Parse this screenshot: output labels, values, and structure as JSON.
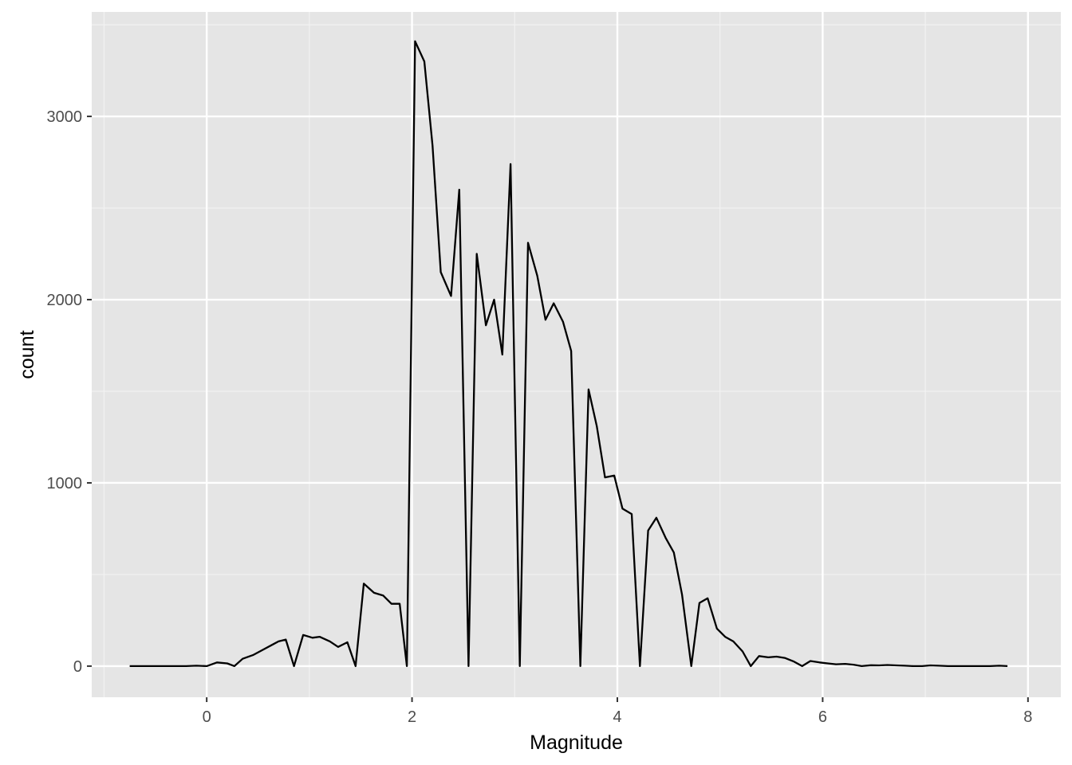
{
  "chart_data": {
    "type": "line",
    "title": "",
    "xlabel": "Magnitude",
    "ylabel": "count",
    "xlim": [
      -1.12,
      8.32
    ],
    "ylim": [
      -170,
      3570
    ],
    "x_ticks": [
      0,
      2,
      4,
      6,
      8
    ],
    "y_ticks": [
      0,
      1000,
      2000,
      3000
    ],
    "x_tick_labels": [
      "0",
      "2",
      "4",
      "6",
      "8"
    ],
    "y_tick_labels": [
      "0",
      "1000",
      "2000",
      "3000"
    ],
    "x_minor_ticks": [
      -1,
      1,
      3,
      5,
      7
    ],
    "y_minor_ticks": [
      500,
      1500,
      2500,
      3500
    ],
    "grid": true,
    "legend": "none",
    "colors": {
      "panel_background": "#e5e5e5",
      "grid_major": "#ffffff",
      "line": "#000000"
    },
    "series": [
      {
        "x": [
          -0.75,
          -0.62,
          -0.5,
          -0.4,
          -0.3,
          -0.2,
          -0.1,
          0.0,
          0.1,
          0.2,
          0.27,
          0.35,
          0.45,
          0.55,
          0.65,
          0.7,
          0.77,
          0.85,
          0.94,
          1.03,
          1.1,
          1.2,
          1.28,
          1.37,
          1.45,
          1.53,
          1.63,
          1.72,
          1.8,
          1.88,
          1.95,
          2.03,
          2.12,
          2.2,
          2.28,
          2.38,
          2.46,
          2.55,
          2.63,
          2.72,
          2.8,
          2.88,
          2.96,
          3.05,
          3.13,
          3.22,
          3.3,
          3.38,
          3.47,
          3.55,
          3.64,
          3.72,
          3.8,
          3.88,
          3.97,
          4.05,
          4.14,
          4.22,
          4.3,
          4.38,
          4.47,
          4.55,
          4.63,
          4.72,
          4.8,
          4.88,
          4.97,
          5.05,
          5.13,
          5.22,
          5.3,
          5.38,
          5.47,
          5.55,
          5.63,
          5.72,
          5.8,
          5.88,
          5.97,
          6.05,
          6.13,
          6.22,
          6.3,
          6.38,
          6.47,
          6.55,
          6.63,
          6.72,
          6.8,
          6.88,
          6.97,
          7.05,
          7.13,
          7.22,
          7.3,
          7.38,
          7.47,
          7.55,
          7.63,
          7.72,
          7.8
        ],
        "y": [
          0,
          0,
          0,
          0,
          0,
          0,
          2,
          0,
          20,
          15,
          0,
          40,
          60,
          90,
          120,
          135,
          145,
          0,
          170,
          155,
          160,
          135,
          105,
          130,
          0,
          450,
          400,
          385,
          340,
          340,
          0,
          3410,
          3300,
          2840,
          2150,
          2020,
          2600,
          0,
          2250,
          1860,
          2000,
          1700,
          2740,
          0,
          2310,
          2130,
          1890,
          1980,
          1880,
          1720,
          0,
          1510,
          1310,
          1030,
          1040,
          860,
          830,
          0,
          740,
          810,
          700,
          620,
          390,
          0,
          345,
          370,
          205,
          160,
          135,
          80,
          0,
          55,
          48,
          52,
          45,
          25,
          0,
          28,
          20,
          15,
          10,
          12,
          8,
          0,
          5,
          4,
          6,
          4,
          2,
          0,
          0,
          4,
          2,
          0,
          0,
          0,
          0,
          0,
          0,
          2,
          0
        ]
      }
    ]
  }
}
